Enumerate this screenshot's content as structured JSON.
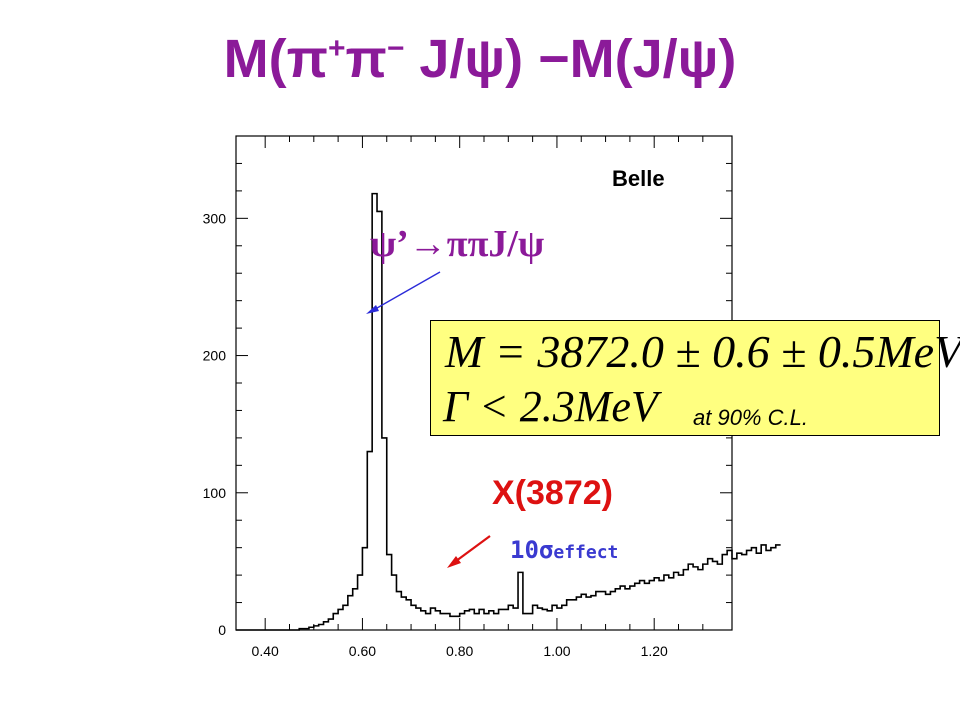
{
  "title": {
    "prefix": "M(",
    "pi": "π",
    "plus": "+",
    "minus": "−",
    "jpsi": " J/ψ) −M(J/ψ)"
  },
  "annotations": {
    "belle": "Belle",
    "psi_decay": "ψ’→ππJ/ψ",
    "mass_result": "M = 3872.0 ± 0.6 ± 0.5MeV",
    "width_result": "Γ < 2.3MeV",
    "cl": "at  90% C.L.",
    "x_state": "X(3872)",
    "significance_main": "10σ",
    "significance_sub": "effect"
  },
  "colors": {
    "title": "#8B1A99",
    "psi_arrow": "#2B2BD8",
    "x_state": "#DD1111",
    "significance": "#3A3AD0",
    "box_fill": "#FFFF80"
  },
  "chart_data": {
    "type": "histogram",
    "title": "",
    "xlabel": "",
    "ylabel": "",
    "xlim": [
      0.34,
      1.36
    ],
    "ylim": [
      0,
      360
    ],
    "xticks": [
      "0.40",
      "0.60",
      "0.80",
      "1.00",
      "1.20"
    ],
    "yticks": [
      "0",
      "100",
      "200",
      "300"
    ],
    "bin_width": 0.01,
    "x_start": 0.34,
    "counts": [
      0,
      0,
      0,
      0,
      0,
      0,
      0,
      0,
      0,
      0,
      0,
      0,
      0,
      1,
      1,
      2,
      3,
      4,
      6,
      8,
      12,
      15,
      18,
      25,
      30,
      40,
      60,
      130,
      318,
      305,
      140,
      55,
      40,
      28,
      24,
      22,
      18,
      16,
      14,
      12,
      16,
      14,
      12,
      12,
      10,
      10,
      12,
      14,
      15,
      12,
      15,
      12,
      14,
      12,
      15,
      15,
      18,
      16,
      42,
      12,
      12,
      18,
      16,
      15,
      14,
      18,
      16,
      18,
      22,
      22,
      24,
      26,
      24,
      25,
      28,
      28,
      26,
      28,
      30,
      32,
      30,
      32,
      34,
      36,
      34,
      36,
      38,
      36,
      40,
      38,
      42,
      40,
      44,
      48,
      46,
      44,
      48,
      52,
      50,
      48,
      55,
      58,
      52,
      56,
      55,
      58,
      60,
      56,
      62,
      58,
      60,
      62
    ]
  }
}
